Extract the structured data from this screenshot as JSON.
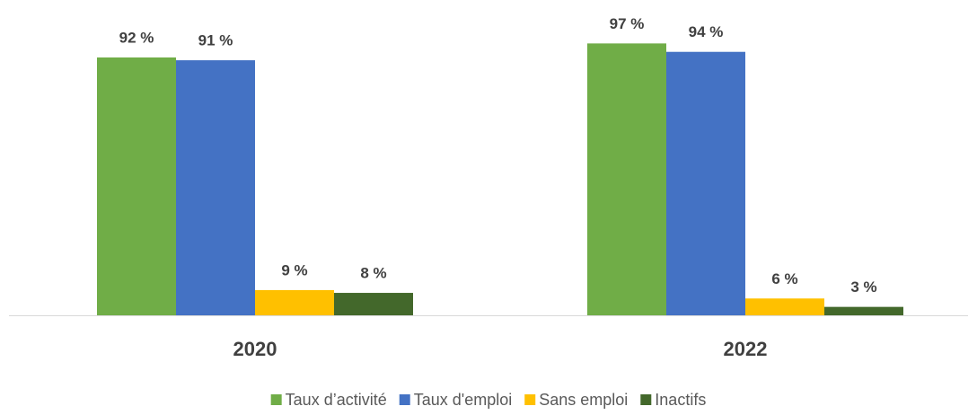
{
  "chart_data": {
    "type": "bar",
    "categories": [
      "2020",
      "2022"
    ],
    "series": [
      {
        "name": "Taux d’activité",
        "color": "#70ad47",
        "values": [
          92,
          97
        ],
        "value_labels": [
          "92 %",
          "97 %"
        ]
      },
      {
        "name": "Taux d'emploi",
        "color": "#4472c4",
        "values": [
          91,
          94
        ],
        "value_labels": [
          "91 %",
          "94 %"
        ]
      },
      {
        "name": "Sans emploi",
        "color": "#ffc000",
        "values": [
          9,
          6
        ],
        "value_labels": [
          "9 %",
          "6 %"
        ]
      },
      {
        "name": "Inactifs",
        "color": "#43682b",
        "values": [
          8,
          3
        ],
        "value_labels": [
          "8 %",
          "3 %"
        ]
      }
    ],
    "legend": "bottom"
  }
}
